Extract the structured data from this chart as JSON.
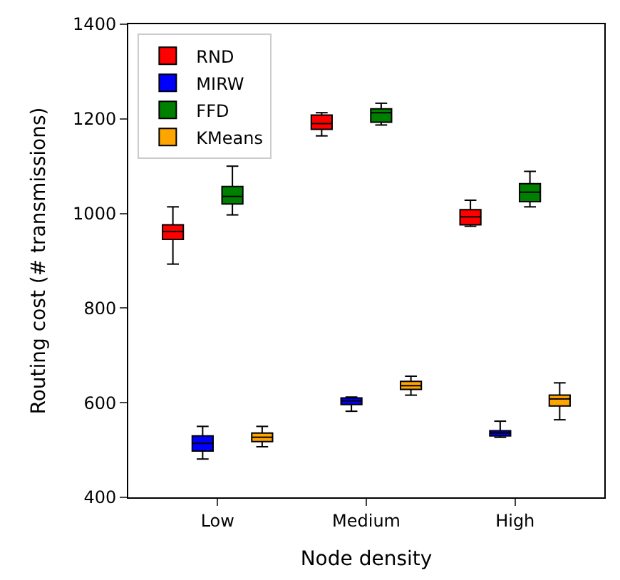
{
  "chart_data": {
    "type": "box",
    "xlabel": "Node density",
    "ylabel": "Routing cost (# transmissions)",
    "categories": [
      "Low",
      "Medium",
      "High"
    ],
    "ylim": [
      400,
      1400
    ],
    "yticks": [
      400,
      600,
      800,
      1000,
      1200,
      1400
    ],
    "legend": "top left",
    "series": [
      {
        "name": "RND",
        "color": "#ff0000",
        "boxes": [
          {
            "low": 893,
            "q1": 945,
            "median": 962,
            "q3": 976,
            "high": 1014
          },
          {
            "low": 1164,
            "q1": 1178,
            "median": 1190,
            "q3": 1208,
            "high": 1213
          },
          {
            "low": 973,
            "q1": 976,
            "median": 993,
            "q3": 1008,
            "high": 1028
          }
        ]
      },
      {
        "name": "MIRW",
        "color": "#0000ff",
        "boxes": [
          {
            "low": 481,
            "q1": 498,
            "median": 514,
            "q3": 530,
            "high": 550
          },
          {
            "low": 582,
            "q1": 596,
            "median": 604,
            "q3": 610,
            "high": 612
          },
          {
            "low": 527,
            "q1": 530,
            "median": 536,
            "q3": 541,
            "high": 561
          }
        ]
      },
      {
        "name": "FFD",
        "color": "#008000",
        "boxes": [
          {
            "low": 997,
            "q1": 1020,
            "median": 1036,
            "q3": 1057,
            "high": 1100
          },
          {
            "low": 1187,
            "q1": 1193,
            "median": 1213,
            "q3": 1221,
            "high": 1233
          },
          {
            "low": 1014,
            "q1": 1025,
            "median": 1045,
            "q3": 1063,
            "high": 1089
          }
        ]
      },
      {
        "name": "KMeans",
        "color": "#ffa500",
        "boxes": [
          {
            "low": 507,
            "q1": 518,
            "median": 527,
            "q3": 536,
            "high": 550
          },
          {
            "low": 616,
            "q1": 628,
            "median": 636,
            "q3": 645,
            "high": 656
          },
          {
            "low": 564,
            "q1": 593,
            "median": 608,
            "q3": 616,
            "high": 642
          }
        ]
      }
    ]
  }
}
